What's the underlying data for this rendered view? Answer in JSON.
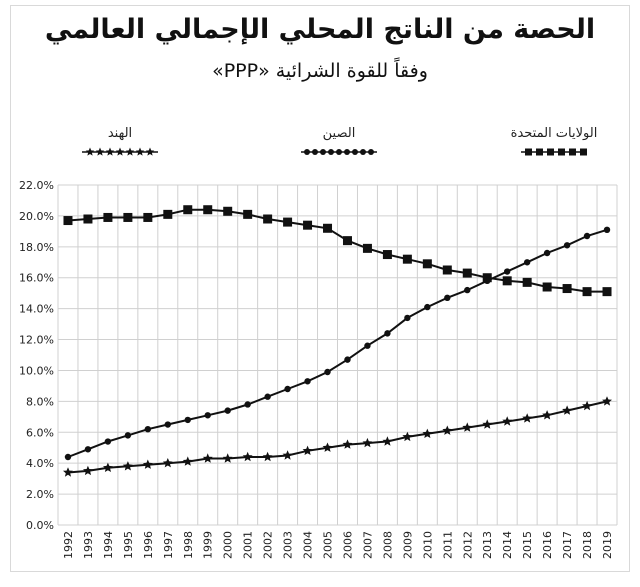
{
  "header": {
    "title": "الحصة من الناتج المحلي الإجمالي العالمي",
    "subtitle": "وفقاً للقوة الشرائية «PPP»"
  },
  "legend": {
    "items": [
      {
        "label": "الهند",
        "marker": "star"
      },
      {
        "label": "الصين",
        "marker": "circle"
      },
      {
        "label": "الولايات المتحدة",
        "marker": "square"
      }
    ]
  },
  "colors": {
    "line": "#111111",
    "grid": "#d0d0d0",
    "axis_text": "#222222"
  },
  "chart_data": {
    "type": "line",
    "title": "الحصة من الناتج المحلي الإجمالي العالمي",
    "subtitle": "وفقاً للقوة الشرائية «PPP»",
    "xlabel": "",
    "ylabel": "",
    "ylim": [
      0,
      22
    ],
    "yticks": [
      "0.0%",
      "2.0%",
      "4.0%",
      "6.0%",
      "8.0%",
      "10.0%",
      "12.0%",
      "14.0%",
      "16.0%",
      "18.0%",
      "20.0%",
      "22.0%"
    ],
    "grid": true,
    "legend_position": "top",
    "x": [
      "1992",
      "1993",
      "1994",
      "1995",
      "1996",
      "1997",
      "1998",
      "1999",
      "2000",
      "2001",
      "2002",
      "2003",
      "2004",
      "2005",
      "2006",
      "2007",
      "2008",
      "2009",
      "2010",
      "2011",
      "2012",
      "2013",
      "2014",
      "2015",
      "2016",
      "2017",
      "2018",
      "2019"
    ],
    "series": [
      {
        "name": "الولايات المتحدة",
        "marker": "square",
        "values": [
          19.7,
          19.8,
          19.9,
          19.9,
          19.9,
          20.1,
          20.4,
          20.4,
          20.3,
          20.1,
          19.8,
          19.6,
          19.4,
          19.2,
          18.4,
          17.9,
          17.5,
          17.2,
          16.9,
          16.5,
          16.3,
          16.0,
          15.8,
          15.7,
          15.4,
          15.3,
          15.1,
          15.1
        ]
      },
      {
        "name": "الصين",
        "marker": "circle",
        "values": [
          4.4,
          4.9,
          5.4,
          5.8,
          6.2,
          6.5,
          6.8,
          7.1,
          7.4,
          7.8,
          8.3,
          8.8,
          9.3,
          9.9,
          10.7,
          11.6,
          12.4,
          13.4,
          14.1,
          14.7,
          15.2,
          15.8,
          16.4,
          17.0,
          17.6,
          18.1,
          18.7,
          19.1
        ]
      },
      {
        "name": "الهند",
        "marker": "star",
        "values": [
          3.4,
          3.5,
          3.7,
          3.8,
          3.9,
          4.0,
          4.1,
          4.3,
          4.3,
          4.4,
          4.4,
          4.5,
          4.8,
          5.0,
          5.2,
          5.3,
          5.4,
          5.7,
          5.9,
          6.1,
          6.3,
          6.5,
          6.7,
          6.9,
          7.1,
          7.4,
          7.7,
          8.0
        ]
      }
    ]
  }
}
